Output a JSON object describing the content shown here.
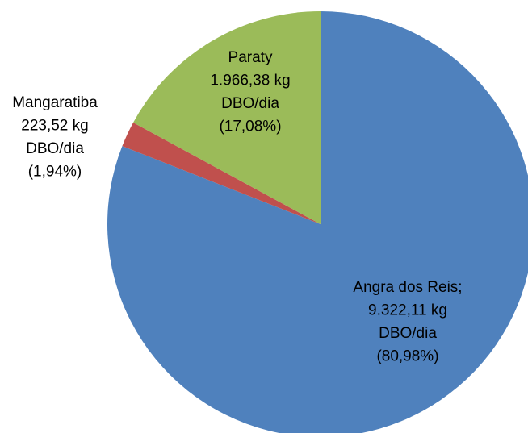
{
  "chart_data": {
    "type": "pie",
    "categories": [
      "Angra dos Reis;",
      "Mangaratiba",
      "Paraty"
    ],
    "values": [
      9322.11,
      223.52,
      1966.38
    ],
    "value_labels": [
      "9.322,11 kg",
      "223,52 kg",
      "1.966,38 kg"
    ],
    "unit_label": "DBO/dia",
    "percents": [
      80.98,
      1.94,
      17.08
    ],
    "percent_labels": [
      "(80,98%)",
      "(1,94%)",
      "(17,08%)"
    ],
    "colors": [
      "#4f81bd",
      "#c0504d",
      "#9bbb59"
    ]
  }
}
